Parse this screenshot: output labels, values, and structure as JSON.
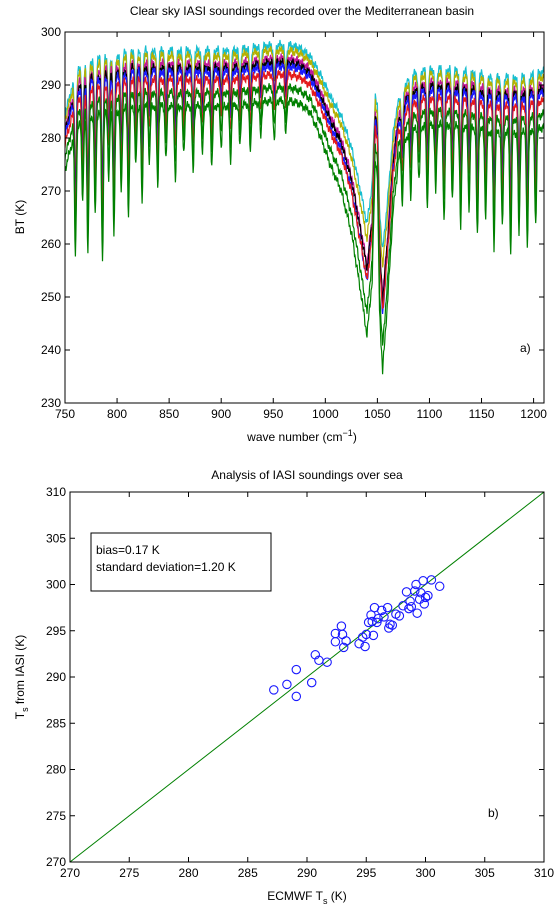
{
  "chart_data": [
    {
      "type": "line",
      "title": "Clear sky IASI soundings recorded over the Mediterranean basin",
      "xlabel": "wave number (cm",
      "xlabel_sup": "−1",
      "xlabel_end": ")",
      "ylabel": "BT (K)",
      "panel_label": "a)",
      "xlim": [
        750,
        1210
      ],
      "ylim": [
        230,
        300
      ],
      "xticks": [
        750,
        800,
        850,
        900,
        950,
        1000,
        1050,
        1100,
        1150,
        1200
      ],
      "yticks": [
        230,
        240,
        250,
        260,
        270,
        280,
        290,
        300
      ],
      "grid": false,
      "baseline": {
        "x": [
          750,
          758,
          765,
          775,
          790,
          800,
          815,
          830,
          850,
          870,
          890,
          910,
          930,
          950,
          965,
          975,
          985,
          995,
          1005,
          1015,
          1025,
          1035,
          1040,
          1045,
          1048,
          1050,
          1052,
          1055,
          1060,
          1065,
          1070,
          1080,
          1090,
          1100,
          1110,
          1120,
          1130,
          1140,
          1150,
          1160,
          1170,
          1180,
          1190,
          1200,
          1210
        ],
        "y": [
          282,
          288,
          291,
          292,
          293,
          293,
          294,
          294,
          294,
          294,
          294,
          294,
          294.5,
          295,
          295,
          294.5,
          293,
          289,
          284,
          280,
          273,
          262,
          256,
          265,
          285,
          282,
          260,
          250,
          262,
          276,
          284,
          289,
          290,
          290.5,
          290.5,
          290.5,
          290,
          290,
          289.5,
          289,
          289,
          289,
          289,
          289.5,
          290
        ]
      },
      "absorption_lines": [
        {
          "x": 760,
          "depth": 18
        },
        {
          "x": 767,
          "depth": 12
        },
        {
          "x": 772,
          "depth": 20
        },
        {
          "x": 779,
          "depth": 15
        },
        {
          "x": 786,
          "depth": 22
        },
        {
          "x": 792,
          "depth": 10
        },
        {
          "x": 797,
          "depth": 18
        },
        {
          "x": 804,
          "depth": 12
        },
        {
          "x": 811,
          "depth": 16
        },
        {
          "x": 818,
          "depth": 9
        },
        {
          "x": 824,
          "depth": 14
        },
        {
          "x": 831,
          "depth": 8
        },
        {
          "x": 839,
          "depth": 12
        },
        {
          "x": 847,
          "depth": 8
        },
        {
          "x": 856,
          "depth": 11
        },
        {
          "x": 864,
          "depth": 7
        },
        {
          "x": 873,
          "depth": 10
        },
        {
          "x": 882,
          "depth": 7
        },
        {
          "x": 891,
          "depth": 9
        },
        {
          "x": 900,
          "depth": 6
        },
        {
          "x": 909,
          "depth": 8
        },
        {
          "x": 918,
          "depth": 6
        },
        {
          "x": 928,
          "depth": 7
        },
        {
          "x": 938,
          "depth": 5
        },
        {
          "x": 951,
          "depth": 6
        },
        {
          "x": 962,
          "depth": 5
        },
        {
          "x": 1074,
          "depth": 8
        },
        {
          "x": 1082,
          "depth": 10
        },
        {
          "x": 1090,
          "depth": 8
        },
        {
          "x": 1098,
          "depth": 12
        },
        {
          "x": 1106,
          "depth": 10
        },
        {
          "x": 1114,
          "depth": 14
        },
        {
          "x": 1122,
          "depth": 11
        },
        {
          "x": 1130,
          "depth": 15
        },
        {
          "x": 1138,
          "depth": 12
        },
        {
          "x": 1146,
          "depth": 16
        },
        {
          "x": 1154,
          "depth": 13
        },
        {
          "x": 1162,
          "depth": 17
        },
        {
          "x": 1170,
          "depth": 14
        },
        {
          "x": 1178,
          "depth": 18
        },
        {
          "x": 1186,
          "depth": 15
        },
        {
          "x": 1194,
          "depth": 17
        },
        {
          "x": 1202,
          "depth": 14
        }
      ],
      "series": [
        {
          "color": "#17becf",
          "offset": 2.5,
          "o3": 0.85
        },
        {
          "color": "#b5b000",
          "offset": 1.5,
          "o3": 0.9
        },
        {
          "color": "#c0189a",
          "offset": 0.0,
          "o3": 1.0
        },
        {
          "color": "#000000",
          "offset": -0.8,
          "o3": 1.0
        },
        {
          "color": "#1a1aff",
          "offset": -1.5,
          "o3": 1.05
        },
        {
          "color": "#e31a1c",
          "offset": -3.0,
          "o3": 1.0
        },
        {
          "color": "#008000",
          "offset": -5.5,
          "o3": 1.1
        },
        {
          "color": "#008000",
          "offset": -8.0,
          "o3": 1.15
        }
      ]
    },
    {
      "type": "scatter",
      "title": "Analysis of IASI soundings over sea",
      "xlabel": "ECMWF  T",
      "xlabel_sub": "s",
      "xlabel_end": " (K)",
      "ylabel": "T",
      "ylabel_sub": "s",
      "ylabel_end": " from IASI (K)",
      "panel_label": "b)",
      "annotation": [
        "bias=0.17 K",
        "standard deviation=1.20 K"
      ],
      "xlim": [
        270,
        310
      ],
      "ylim": [
        270,
        310
      ],
      "xticks": [
        270,
        275,
        280,
        285,
        290,
        295,
        300,
        305,
        310
      ],
      "yticks": [
        270,
        275,
        280,
        285,
        290,
        295,
        300,
        305,
        310
      ],
      "grid": false,
      "marker_color": "#1a1aff",
      "line_color": "#008000",
      "identity_line": [
        [
          270,
          270
        ],
        [
          310,
          310
        ]
      ],
      "points": [
        [
          287.2,
          288.6
        ],
        [
          288.3,
          289.2
        ],
        [
          289.1,
          287.9
        ],
        [
          289.1,
          290.8
        ],
        [
          290.4,
          289.4
        ],
        [
          290.7,
          292.4
        ],
        [
          291.0,
          291.8
        ],
        [
          291.7,
          291.6
        ],
        [
          292.4,
          294.7
        ],
        [
          292.4,
          293.8
        ],
        [
          292.9,
          295.5
        ],
        [
          293.0,
          294.6
        ],
        [
          293.1,
          293.2
        ],
        [
          293.3,
          293.9
        ],
        [
          294.4,
          293.6
        ],
        [
          294.7,
          294.3
        ],
        [
          294.9,
          293.3
        ],
        [
          295.0,
          294.6
        ],
        [
          295.2,
          295.9
        ],
        [
          295.4,
          296.7
        ],
        [
          295.5,
          296.0
        ],
        [
          295.6,
          294.5
        ],
        [
          295.7,
          297.5
        ],
        [
          295.9,
          295.9
        ],
        [
          296.0,
          296.3
        ],
        [
          296.3,
          297.2
        ],
        [
          296.5,
          296.5
        ],
        [
          296.8,
          297.5
        ],
        [
          296.9,
          295.3
        ],
        [
          297.0,
          295.7
        ],
        [
          297.2,
          295.6
        ],
        [
          297.5,
          296.8
        ],
        [
          297.8,
          296.6
        ],
        [
          298.1,
          297.7
        ],
        [
          298.4,
          299.2
        ],
        [
          298.6,
          297.4
        ],
        [
          298.7,
          298.2
        ],
        [
          298.8,
          297.6
        ],
        [
          299.1,
          299.3
        ],
        [
          299.2,
          300.0
        ],
        [
          299.3,
          296.9
        ],
        [
          299.5,
          298.4
        ],
        [
          299.6,
          299.1
        ],
        [
          299.8,
          300.4
        ],
        [
          299.9,
          297.9
        ],
        [
          300.0,
          298.6
        ],
        [
          300.2,
          298.8
        ],
        [
          300.5,
          300.5
        ],
        [
          301.2,
          299.8
        ]
      ]
    }
  ]
}
